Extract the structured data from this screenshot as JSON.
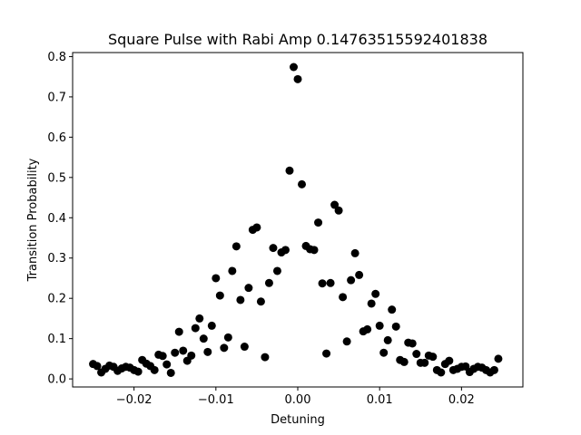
{
  "chart_data": {
    "type": "scatter",
    "title": "Square Pulse with Rabi Amp 0.14763515592401838",
    "xlabel": "Detuning",
    "ylabel": "Transition Probability",
    "xlim": [
      -0.0275,
      0.0275
    ],
    "ylim": [
      -0.02,
      0.81
    ],
    "xticks": [
      -0.02,
      -0.01,
      0.0,
      0.01,
      0.02
    ],
    "xtick_labels": [
      "−0.02",
      "−0.01",
      "0.00",
      "0.01",
      "0.02"
    ],
    "yticks": [
      0.0,
      0.1,
      0.2,
      0.3,
      0.4,
      0.5,
      0.6,
      0.7,
      0.8
    ],
    "ytick_labels": [
      "0.0",
      "0.1",
      "0.2",
      "0.3",
      "0.4",
      "0.5",
      "0.6",
      "0.7",
      "0.8"
    ],
    "grid": false,
    "marker_color": "#000000",
    "points": [
      [
        -0.025,
        0.037
      ],
      [
        -0.0245,
        0.032
      ],
      [
        -0.024,
        0.016
      ],
      [
        -0.0235,
        0.025
      ],
      [
        -0.023,
        0.033
      ],
      [
        -0.0225,
        0.03
      ],
      [
        -0.022,
        0.02
      ],
      [
        -0.0215,
        0.026
      ],
      [
        -0.021,
        0.03
      ],
      [
        -0.0205,
        0.028
      ],
      [
        -0.02,
        0.022
      ],
      [
        -0.0195,
        0.018
      ],
      [
        -0.019,
        0.047
      ],
      [
        -0.0185,
        0.038
      ],
      [
        -0.018,
        0.032
      ],
      [
        -0.0175,
        0.022
      ],
      [
        -0.017,
        0.06
      ],
      [
        -0.0165,
        0.057
      ],
      [
        -0.016,
        0.036
      ],
      [
        -0.0155,
        0.015
      ],
      [
        -0.015,
        0.065
      ],
      [
        -0.0145,
        0.117
      ],
      [
        -0.014,
        0.07
      ],
      [
        -0.0135,
        0.045
      ],
      [
        -0.013,
        0.058
      ],
      [
        -0.0125,
        0.126
      ],
      [
        -0.012,
        0.15
      ],
      [
        -0.0115,
        0.1
      ],
      [
        -0.011,
        0.067
      ],
      [
        -0.0105,
        0.132
      ],
      [
        -0.01,
        0.25
      ],
      [
        -0.0095,
        0.207
      ],
      [
        -0.009,
        0.077
      ],
      [
        -0.0085,
        0.103
      ],
      [
        -0.008,
        0.268
      ],
      [
        -0.0075,
        0.329
      ],
      [
        -0.007,
        0.196
      ],
      [
        -0.0065,
        0.08
      ],
      [
        -0.006,
        0.226
      ],
      [
        -0.0055,
        0.37
      ],
      [
        -0.005,
        0.376
      ],
      [
        -0.0045,
        0.192
      ],
      [
        -0.004,
        0.054
      ],
      [
        -0.0035,
        0.238
      ],
      [
        -0.003,
        0.325
      ],
      [
        -0.0025,
        0.268
      ],
      [
        -0.002,
        0.314
      ],
      [
        -0.0015,
        0.32
      ],
      [
        -0.001,
        0.517
      ],
      [
        -0.0005,
        0.774
      ],
      [
        0.0,
        0.744
      ],
      [
        0.0005,
        0.483
      ],
      [
        0.001,
        0.33
      ],
      [
        0.0015,
        0.322
      ],
      [
        0.002,
        0.32
      ],
      [
        0.0025,
        0.388
      ],
      [
        0.003,
        0.237
      ],
      [
        0.0035,
        0.063
      ],
      [
        0.004,
        0.238
      ],
      [
        0.0045,
        0.432
      ],
      [
        0.005,
        0.418
      ],
      [
        0.0055,
        0.203
      ],
      [
        0.006,
        0.093
      ],
      [
        0.0065,
        0.245
      ],
      [
        0.007,
        0.312
      ],
      [
        0.0075,
        0.258
      ],
      [
        0.008,
        0.118
      ],
      [
        0.0085,
        0.123
      ],
      [
        0.009,
        0.187
      ],
      [
        0.0095,
        0.211
      ],
      [
        0.01,
        0.132
      ],
      [
        0.0105,
        0.065
      ],
      [
        0.011,
        0.096
      ],
      [
        0.0115,
        0.172
      ],
      [
        0.012,
        0.13
      ],
      [
        0.0125,
        0.047
      ],
      [
        0.013,
        0.042
      ],
      [
        0.0135,
        0.09
      ],
      [
        0.014,
        0.088
      ],
      [
        0.0145,
        0.062
      ],
      [
        0.015,
        0.04
      ],
      [
        0.0155,
        0.04
      ],
      [
        0.016,
        0.058
      ],
      [
        0.0165,
        0.055
      ],
      [
        0.017,
        0.022
      ],
      [
        0.0175,
        0.016
      ],
      [
        0.018,
        0.037
      ],
      [
        0.0185,
        0.045
      ],
      [
        0.019,
        0.022
      ],
      [
        0.0195,
        0.025
      ],
      [
        0.02,
        0.03
      ],
      [
        0.0205,
        0.031
      ],
      [
        0.021,
        0.017
      ],
      [
        0.0215,
        0.025
      ],
      [
        0.022,
        0.03
      ],
      [
        0.0225,
        0.028
      ],
      [
        0.023,
        0.022
      ],
      [
        0.0235,
        0.016
      ],
      [
        0.024,
        0.022
      ],
      [
        0.0245,
        0.05
      ]
    ]
  }
}
